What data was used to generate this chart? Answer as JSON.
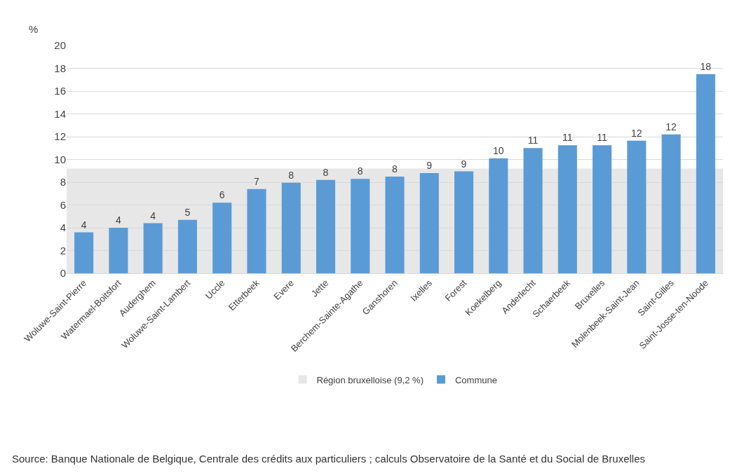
{
  "chart_data": {
    "type": "bar",
    "ylabel": "%",
    "categories": [
      "Woluwe-Saint-Pierre",
      "Watermael-Boitsfort",
      "Auderghem",
      "Woluwe-Saint-Lambert",
      "Uccle",
      "Etterbeek",
      "Evere",
      "Jette",
      "Berchem-Sainte-Agathe",
      "Ganshoren",
      "Ixelles",
      "Forest",
      "Koekelberg",
      "Anderlecht",
      "Schaerbeek",
      "Bruxelles",
      "Molenbeek-Saint-Jean",
      "Saint-Gilles",
      "Saint-Josse-ten-Noode"
    ],
    "series": [
      {
        "name": "Commune",
        "color": "#5b9bd5",
        "values": [
          3.6,
          4.0,
          4.4,
          4.7,
          6.2,
          7.4,
          7.95,
          8.2,
          8.3,
          8.5,
          8.8,
          8.95,
          10.1,
          11.0,
          11.25,
          11.25,
          11.65,
          12.2,
          17.5
        ],
        "value_labels": [
          "4",
          "4",
          "4",
          "5",
          "6",
          "7",
          "8",
          "8",
          "8",
          "8",
          "9",
          "9",
          "10",
          "11",
          "11",
          "11",
          "12",
          "12",
          "18"
        ]
      }
    ],
    "bands": [
      {
        "axis": "y",
        "from": 0,
        "to": 9.2,
        "label": "Région bruxelloise (9,2 %)",
        "color": "#e7e7e7"
      }
    ],
    "ylim": [
      0,
      20
    ],
    "yticks": [
      0,
      2,
      4,
      6,
      8,
      10,
      12,
      14,
      16,
      18,
      20
    ],
    "grid": "y",
    "legend": "bottom",
    "annotations": [
      "Source: Banque Nationale de Belgique, Centrale des crédits aux particuliers ; calculs Observatoire de la Santé et du Social de Bruxelles"
    ]
  }
}
